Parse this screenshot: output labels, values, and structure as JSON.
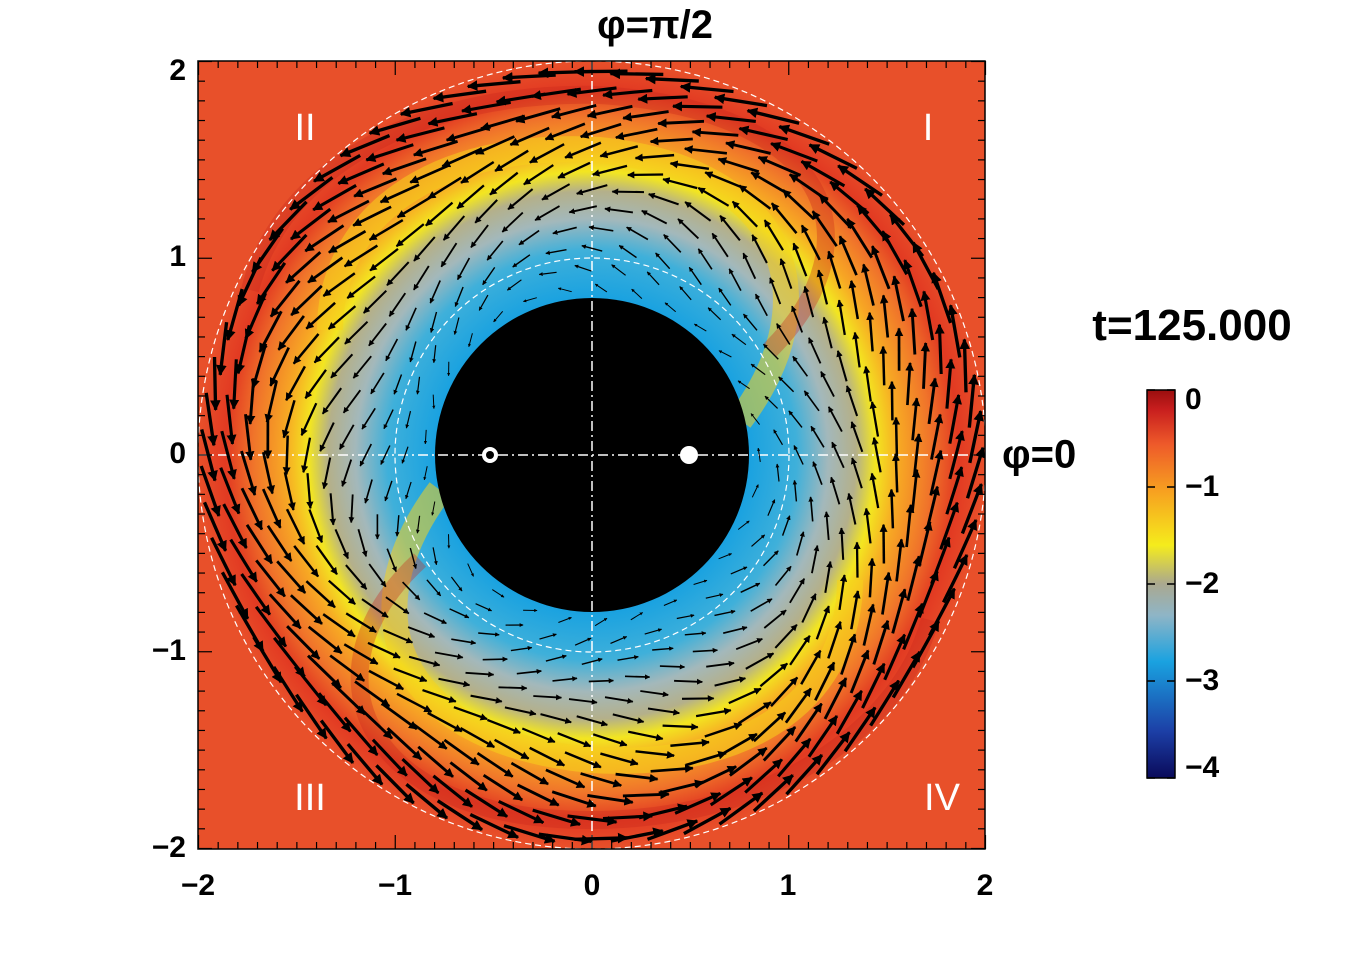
{
  "chart_data": {
    "type": "heatmap",
    "title": "t=125.000",
    "xlim": [
      -2,
      2
    ],
    "ylim": [
      -2,
      2
    ],
    "x_ticks": [
      "−2",
      "−1",
      "0",
      "1",
      "2"
    ],
    "y_ticks": [
      "−2",
      "−1",
      "0",
      "1",
      "2"
    ],
    "x_tick_values": [
      -2,
      -1,
      0,
      1,
      2
    ],
    "y_tick_values": [
      -2,
      -1,
      0,
      1,
      2
    ],
    "angle_labels": {
      "top": "φ=π/2",
      "right": "φ=0"
    },
    "quadrant_labels": [
      "I",
      "II",
      "III",
      "IV"
    ],
    "colorbar": {
      "range": [
        -4,
        0
      ],
      "tick_labels": [
        "0",
        "−1",
        "−2",
        "−3",
        "−4"
      ],
      "tick_values": [
        0,
        -1,
        -2,
        -3,
        -4
      ],
      "colors": [
        "#0a0a5a",
        "#1c3fa6",
        "#1aa2e0",
        "#9fb7bf",
        "#aaa890",
        "#f5ec1c",
        "#f7a020",
        "#ee5a2a",
        "#c81e1e",
        "#9a0e0e"
      ]
    },
    "regions": {
      "inner_cutout_radius": 0.8,
      "dashed_circle_radii": [
        1.0,
        2.0
      ],
      "point_markers": [
        [
          -0.5,
          0
        ],
        [
          0.5,
          0
        ]
      ]
    },
    "field": {
      "description_values": "log density: about -2.5 near r=1, rising to about -0.3 near r=2, with two spiral arms",
      "min_value": -2.6,
      "max_value": -0.2
    },
    "vectors": {
      "rotation": "counter-clockwise",
      "inner_radius": 0.85,
      "outer_radius": 1.98
    }
  }
}
